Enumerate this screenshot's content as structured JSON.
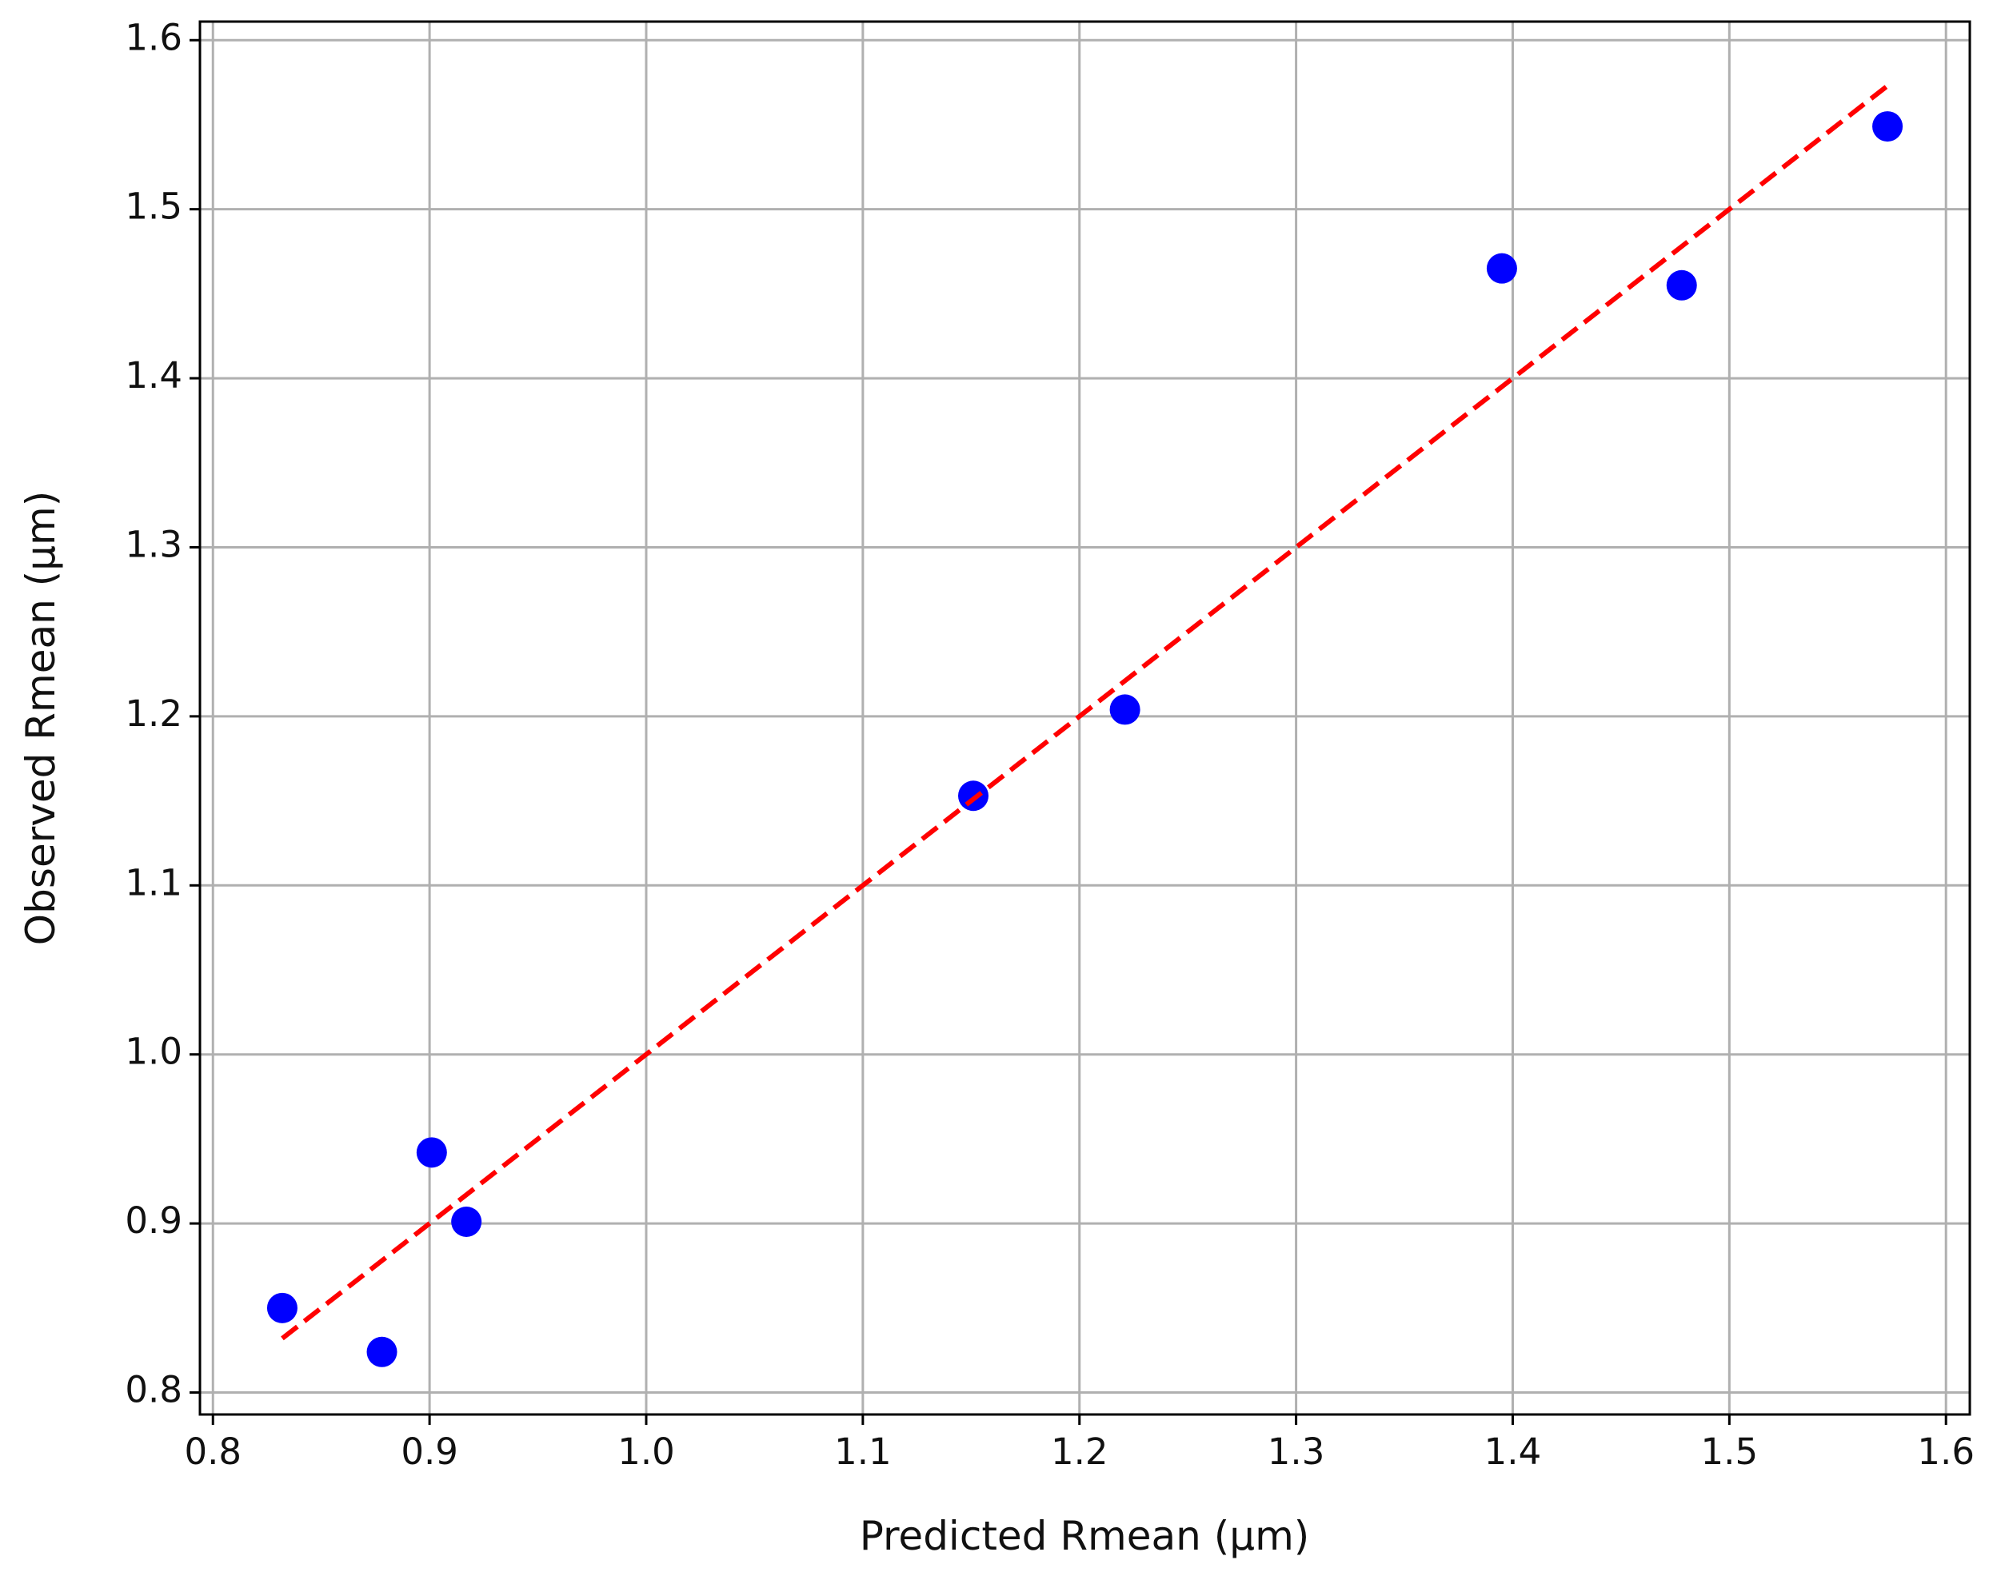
{
  "chart_data": {
    "type": "scatter",
    "x_label": "Predicted Rmean (µm)",
    "y_label": "Observed Rmean (µm)",
    "xlim": [
      0.794,
      1.611
    ],
    "ylim": [
      0.787,
      1.611
    ],
    "xticks": [
      0.8,
      0.9,
      {
        "value": 1,
        "label": "1.0"
      },
      1.1,
      1.2,
      1.3,
      1.4,
      1.5,
      1.6
    ],
    "yticks": [
      0.8,
      0.9,
      {
        "value": 1,
        "label": "1.0"
      },
      1.1,
      1.2,
      1.3,
      1.4,
      1.5,
      1.6
    ],
    "grid": true,
    "series": [
      {
        "kind": "markers",
        "color": "#0000ff",
        "x": [
          0.832,
          0.878,
          0.901,
          0.917,
          1.151,
          1.221,
          1.395,
          1.478,
          1.573
        ],
        "values": [
          0.85,
          0.824,
          0.942,
          0.901,
          1.153,
          1.204,
          1.465,
          1.455,
          1.549
        ]
      },
      {
        "kind": "dashed-line",
        "color": "#ff0000",
        "x": [
          0.832,
          1.573
        ],
        "values": [
          0.832,
          1.573
        ]
      }
    ]
  }
}
